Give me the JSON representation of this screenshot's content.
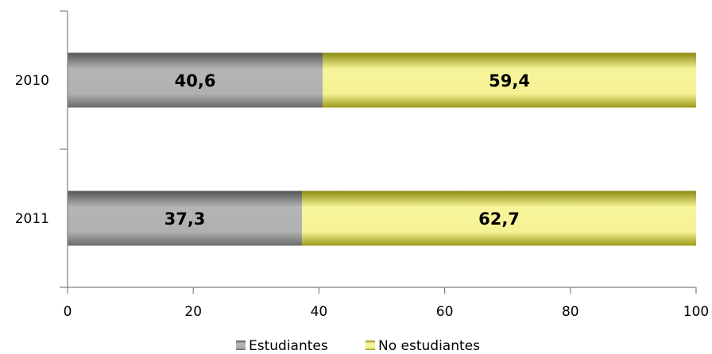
{
  "chart_data": {
    "type": "bar",
    "orientation": "horizontal",
    "stacked": true,
    "categories": [
      "2010",
      "2011"
    ],
    "series": [
      {
        "name": "Estudiantes",
        "values": [
          40.6,
          37.3
        ],
        "labels": [
          "40,6",
          "37,3"
        ],
        "color": "#9a9a9a"
      },
      {
        "name": "No estudiantes",
        "values": [
          59.4,
          62.7
        ],
        "labels": [
          "59,4",
          "62,7"
        ],
        "color": "#f2f08a"
      }
    ],
    "xlim": [
      0,
      100
    ],
    "xticks": [
      0,
      20,
      40,
      60,
      80,
      100
    ],
    "title": "",
    "xlabel": "",
    "ylabel": "",
    "grid": false,
    "legend": "bottom"
  }
}
